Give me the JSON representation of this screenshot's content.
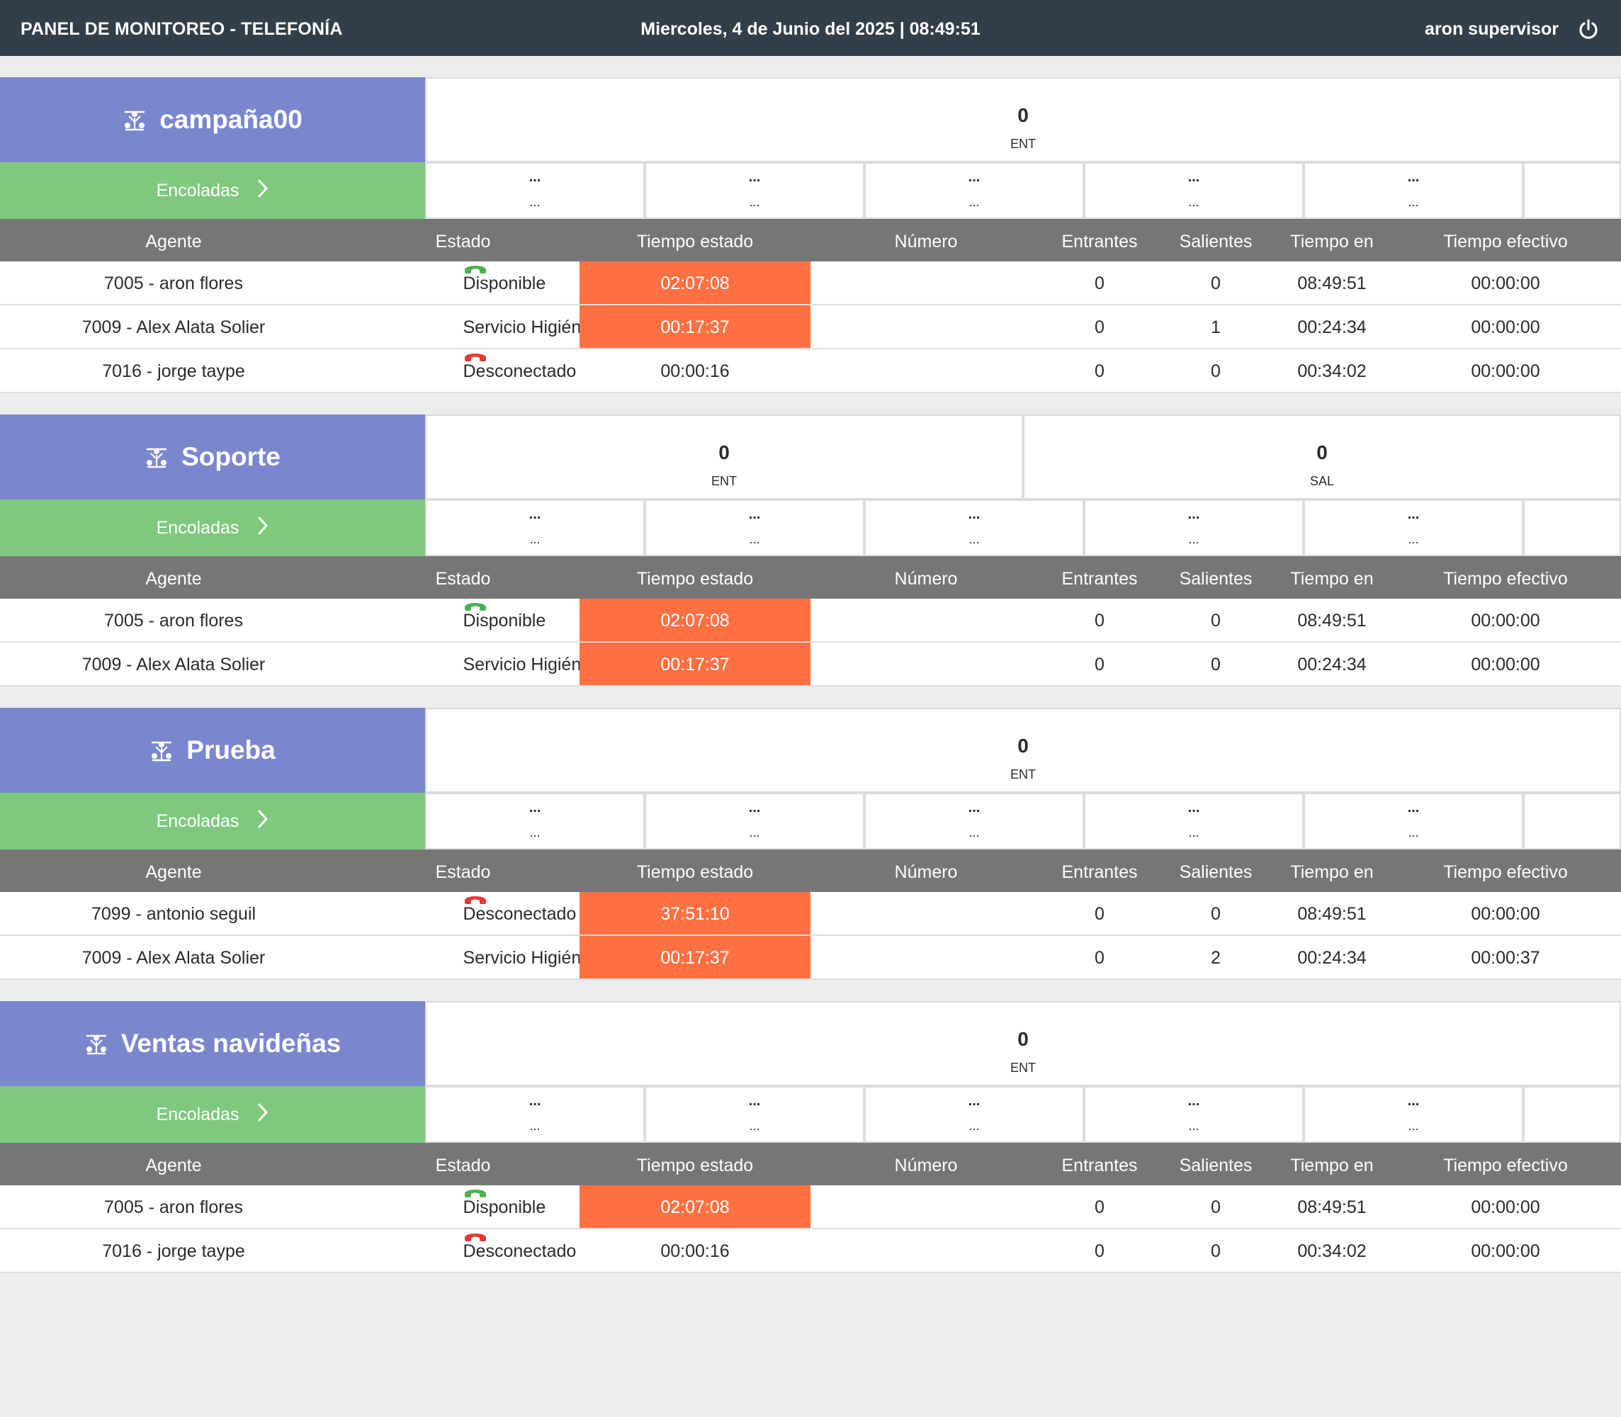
{
  "header": {
    "title": "PANEL DE MONITOREO - TELEFONÍA",
    "datetime": "Miercoles, 4 de Junio del 2025 | 08:49:51",
    "user": "aron supervisor",
    "power_icon": "power-icon"
  },
  "colors": {
    "topbar": "#333f48",
    "campaign": "#7b87cd",
    "queued": "#7fc97f",
    "table_header": "#767676",
    "highlight": "#ff7043",
    "phone_green": "#4caf50",
    "phone_red": "#e53935"
  },
  "columns": {
    "agente": "Agente",
    "estado": "Estado",
    "tiempo_estado": "Tiempo estado",
    "numero": "Número",
    "entrantes": "Entrantes",
    "salientes": "Salientes",
    "tiempo_en": "Tiempo en",
    "tiempo_efectivo": "Tiempo efectivo"
  },
  "queue_label": "Encoladas",
  "queue_placeholder": {
    "top": "...",
    "bottom": "..."
  },
  "campaigns": [
    {
      "name": "campaña00",
      "stats": [
        {
          "value": "0",
          "label": "ENT"
        }
      ],
      "agents": [
        {
          "agente": "7005 - aron flores",
          "estado": "Disponible",
          "phone": "green",
          "tiempo_estado": "02:07:08",
          "highlight": true,
          "numero": "",
          "entrantes": "0",
          "salientes": "0",
          "tiempo_en": "08:49:51",
          "tiempo_efectivo": "00:00:00"
        },
        {
          "agente": "7009 - Alex Alata Solier",
          "estado": "Servicio Higiénico",
          "phone": "none",
          "tiempo_estado": "00:17:37",
          "highlight": true,
          "numero": "",
          "entrantes": "0",
          "salientes": "1",
          "tiempo_en": "00:24:34",
          "tiempo_efectivo": "00:00:00"
        },
        {
          "agente": "7016 - jorge taype",
          "estado": "Desconectado",
          "phone": "red",
          "tiempo_estado": "00:00:16",
          "highlight": false,
          "numero": "",
          "entrantes": "0",
          "salientes": "0",
          "tiempo_en": "00:34:02",
          "tiempo_efectivo": "00:00:00"
        }
      ]
    },
    {
      "name": "Soporte",
      "stats": [
        {
          "value": "0",
          "label": "ENT"
        },
        {
          "value": "0",
          "label": "SAL"
        }
      ],
      "agents": [
        {
          "agente": "7005 - aron flores",
          "estado": "Disponible",
          "phone": "green",
          "tiempo_estado": "02:07:08",
          "highlight": true,
          "numero": "",
          "entrantes": "0",
          "salientes": "0",
          "tiempo_en": "08:49:51",
          "tiempo_efectivo": "00:00:00"
        },
        {
          "agente": "7009 - Alex Alata Solier",
          "estado": "Servicio Higiénico",
          "phone": "none",
          "tiempo_estado": "00:17:37",
          "highlight": true,
          "numero": "",
          "entrantes": "0",
          "salientes": "0",
          "tiempo_en": "00:24:34",
          "tiempo_efectivo": "00:00:00"
        }
      ]
    },
    {
      "name": "Prueba",
      "stats": [
        {
          "value": "0",
          "label": "ENT"
        }
      ],
      "agents": [
        {
          "agente": "7099 - antonio seguil",
          "estado": "Desconectado",
          "phone": "red",
          "tiempo_estado": "37:51:10",
          "highlight": true,
          "numero": "",
          "entrantes": "0",
          "salientes": "0",
          "tiempo_en": "08:49:51",
          "tiempo_efectivo": "00:00:00"
        },
        {
          "agente": "7009 - Alex Alata Solier",
          "estado": "Servicio Higiénico",
          "phone": "none",
          "tiempo_estado": "00:17:37",
          "highlight": true,
          "numero": "",
          "entrantes": "0",
          "salientes": "2",
          "tiempo_en": "00:24:34",
          "tiempo_efectivo": "00:00:37"
        }
      ]
    },
    {
      "name": "Ventas navideñas",
      "stats": [
        {
          "value": "0",
          "label": "ENT"
        }
      ],
      "agents": [
        {
          "agente": "7005 - aron flores",
          "estado": "Disponible",
          "phone": "green",
          "tiempo_estado": "02:07:08",
          "highlight": true,
          "numero": "",
          "entrantes": "0",
          "salientes": "0",
          "tiempo_en": "08:49:51",
          "tiempo_efectivo": "00:00:00"
        },
        {
          "agente": "7016 - jorge taype",
          "estado": "Desconectado",
          "phone": "red",
          "tiempo_estado": "00:00:16",
          "highlight": false,
          "numero": "",
          "entrantes": "0",
          "salientes": "0",
          "tiempo_en": "00:34:02",
          "tiempo_efectivo": "00:00:00"
        }
      ]
    }
  ]
}
